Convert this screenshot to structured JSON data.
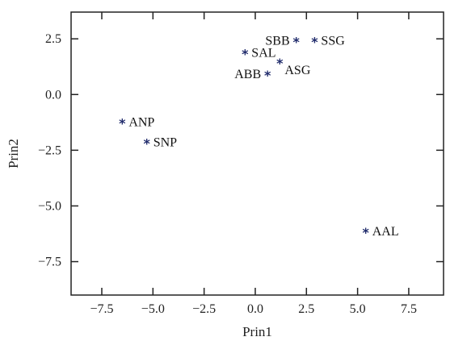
{
  "chart_data": {
    "type": "scatter",
    "title": "",
    "xlabel": "Prin1",
    "ylabel": "Prin2",
    "xlim": [
      -9.0,
      9.2
    ],
    "ylim": [
      -9.0,
      3.7
    ],
    "xticks": [
      -7.5,
      -5.0,
      -2.5,
      0.0,
      2.5,
      5.0,
      7.5
    ],
    "xtick_labels": [
      "−7.5",
      "−5.0",
      "−2.5",
      "0.0",
      "2.5",
      "5.0",
      "7.5"
    ],
    "yticks": [
      2.5,
      0.0,
      -2.5,
      -5.0,
      -7.5
    ],
    "ytick_labels": [
      "2.5",
      "0.0",
      "−2.5",
      "−5.0",
      "−7.5"
    ],
    "grid": false,
    "legend": "none",
    "marker": "*",
    "marker_color": "#1f2a6b",
    "points": [
      {
        "label": "SBB",
        "x": 2.0,
        "y": 2.45,
        "label_pos": "left"
      },
      {
        "label": "SSG",
        "x": 2.9,
        "y": 2.45,
        "label_pos": "right"
      },
      {
        "label": "SAL",
        "x": -0.5,
        "y": 1.9,
        "label_pos": "right"
      },
      {
        "label": "ASG",
        "x": 1.2,
        "y": 1.5,
        "label_pos": "below-right"
      },
      {
        "label": "ABB",
        "x": 0.6,
        "y": 0.95,
        "label_pos": "left"
      },
      {
        "label": "ANP",
        "x": -6.5,
        "y": -1.2,
        "label_pos": "right"
      },
      {
        "label": "SNP",
        "x": -5.3,
        "y": -2.1,
        "label_pos": "right"
      },
      {
        "label": "AAL",
        "x": 5.4,
        "y": -6.1,
        "label_pos": "right"
      }
    ]
  }
}
